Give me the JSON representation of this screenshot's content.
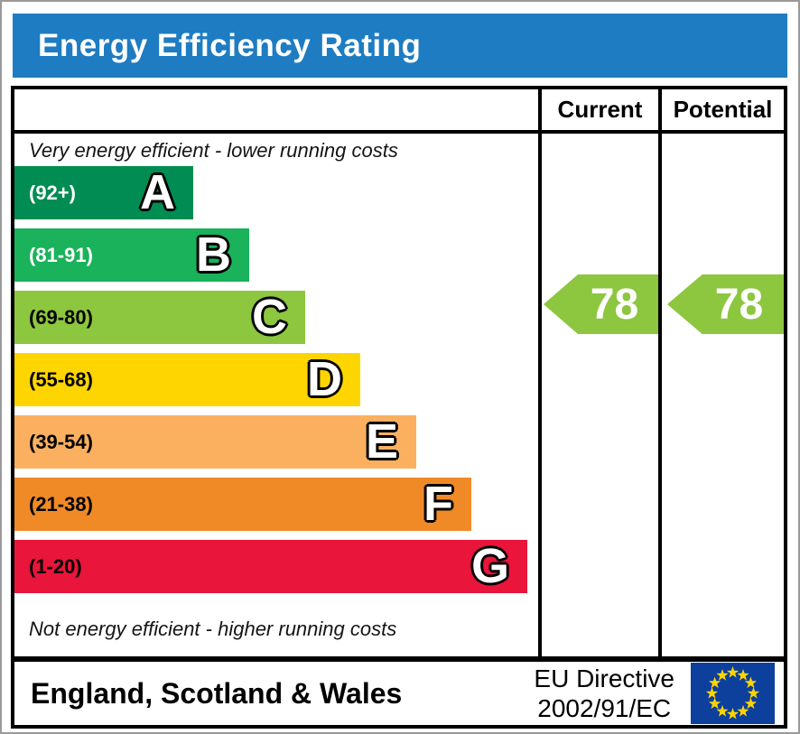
{
  "title": "Energy Efficiency Rating",
  "columns": {
    "current": "Current",
    "potential": "Potential"
  },
  "top_note": "Very energy efficient - lower running costs",
  "bottom_note": "Not energy efficient - higher running costs",
  "footer": {
    "region": "England, Scotland & Wales",
    "directive_line1": "EU Directive",
    "directive_line2": "2002/91/EC"
  },
  "colors": {
    "header_bg": "#1e7cc2",
    "header_text": "#ffffff",
    "border": "#000000",
    "arrow_green": "#8dc63f",
    "eu_blue": "#0d3f9d",
    "eu_star": "#ffd500"
  },
  "chart_data": {
    "type": "bar",
    "title": "Energy Efficiency Rating",
    "bands": [
      {
        "letter": "A",
        "range": "(92+)",
        "color": "#008c52",
        "label_color": "#ffffff"
      },
      {
        "letter": "B",
        "range": "(81-91)",
        "color": "#1ab25a",
        "label_color": "#ffffff"
      },
      {
        "letter": "C",
        "range": "(69-80)",
        "color": "#8dc63f",
        "label_color": "#000000"
      },
      {
        "letter": "D",
        "range": "(55-68)",
        "color": "#ffd500",
        "label_color": "#000000"
      },
      {
        "letter": "E",
        "range": "(39-54)",
        "color": "#fbb060",
        "label_color": "#000000"
      },
      {
        "letter": "F",
        "range": "(21-38)",
        "color": "#f08a27",
        "label_color": "#000000"
      },
      {
        "letter": "G",
        "range": "(1-20)",
        "color": "#e9153b",
        "label_color": "#000000"
      }
    ],
    "current": {
      "label": "Current",
      "value": 78,
      "band": "C",
      "color": "#8dc63f"
    },
    "potential": {
      "label": "Potential",
      "value": 78,
      "band": "C",
      "color": "#8dc63f"
    }
  }
}
